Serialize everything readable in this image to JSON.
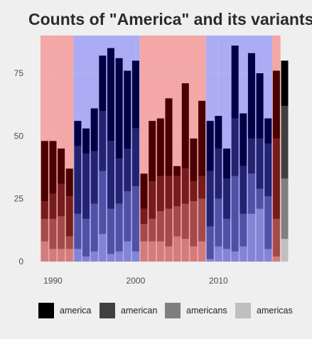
{
  "chart_data": {
    "type": "bar",
    "title": "Counts of \"America\" and its variants",
    "xlabel": "",
    "ylabel": "",
    "stacked": true,
    "ylim": [
      0,
      90
    ],
    "xlim": [
      1988.5,
      2018.3
    ],
    "y_ticks": [
      0,
      25,
      50,
      75
    ],
    "x_ticks": [
      1990,
      2000,
      2010
    ],
    "grid": true,
    "legend_position": "bottom",
    "background_bands": [
      {
        "from": 1988.5,
        "to": 1992.5,
        "color": "#f4a7a7"
      },
      {
        "from": 1992.5,
        "to": 2000.5,
        "color": "#acacf4"
      },
      {
        "from": 2000.5,
        "to": 2008.5,
        "color": "#f4a7a7"
      },
      {
        "from": 2008.5,
        "to": 2016.5,
        "color": "#acacf4"
      },
      {
        "from": 2016.5,
        "to": 2017.5,
        "color": "#f4a7a7"
      }
    ],
    "bar_colors": [
      {
        "from": 1988.5,
        "to": 1992.5,
        "colors": [
          "#4a0000",
          "#751c1c",
          "#a34b4b",
          "#d27d7d"
        ]
      },
      {
        "from": 1992.5,
        "to": 2000.5,
        "colors": [
          "#000045",
          "#23236f",
          "#5050a5",
          "#8484d5"
        ]
      },
      {
        "from": 2000.5,
        "to": 2008.5,
        "colors": [
          "#4a0000",
          "#751c1c",
          "#a34b4b",
          "#d27d7d"
        ]
      },
      {
        "from": 2008.5,
        "to": 2016.5,
        "colors": [
          "#000045",
          "#23236f",
          "#5050a5",
          "#8484d5"
        ]
      },
      {
        "from": 2016.5,
        "to": 2017.5,
        "colors": [
          "#4a0000",
          "#751c1c",
          "#a34b4b",
          "#d27d7d"
        ]
      },
      {
        "from": 2017.5,
        "to": 2018.5,
        "colors": [
          "#000000",
          "#404040",
          "#7f7f7f",
          "#bfbfbf"
        ]
      }
    ],
    "series_names": [
      "america",
      "american",
      "americans",
      "americas"
    ],
    "legend_colors": [
      "#000000",
      "#404040",
      "#7f7f7f",
      "#bfbfbf"
    ],
    "bars": [
      {
        "x": 1989,
        "values": [
          24,
          7,
          9,
          8
        ]
      },
      {
        "x": 1990,
        "values": [
          21,
          10,
          12,
          5
        ]
      },
      {
        "x": 1991,
        "values": [
          14,
          13,
          13,
          5
        ]
      },
      {
        "x": 1992,
        "values": [
          11,
          16,
          5,
          5
        ]
      },
      {
        "x": 1993,
        "values": [
          10,
          27,
          14,
          5
        ]
      },
      {
        "x": 1994,
        "values": [
          10,
          26,
          15,
          2
        ]
      },
      {
        "x": 1995,
        "values": [
          17,
          21,
          19,
          4
        ]
      },
      {
        "x": 1996,
        "values": [
          22,
          24,
          25,
          11
        ]
      },
      {
        "x": 1997,
        "values": [
          37,
          27,
          18,
          3
        ]
      },
      {
        "x": 1998,
        "values": [
          40,
          18,
          19,
          4
        ]
      },
      {
        "x": 1999,
        "values": [
          31,
          17,
          20,
          8
        ]
      },
      {
        "x": 2000,
        "values": [
          27,
          23,
          26,
          4
        ]
      },
      {
        "x": 2001,
        "values": [
          14,
          6,
          7,
          8
        ]
      },
      {
        "x": 2002,
        "values": [
          24,
          15,
          9,
          8
        ]
      },
      {
        "x": 2003,
        "values": [
          23,
          14,
          12,
          8
        ]
      },
      {
        "x": 2004,
        "values": [
          31,
          13,
          15,
          6
        ]
      },
      {
        "x": 2005,
        "values": [
          4,
          12,
          12,
          10
        ]
      },
      {
        "x": 2006,
        "values": [
          34,
          14,
          14,
          9
        ]
      },
      {
        "x": 2007,
        "values": [
          17,
          8,
          18,
          6
        ]
      },
      {
        "x": 2008,
        "values": [
          30,
          9,
          17,
          8
        ]
      },
      {
        "x": 2009,
        "values": [
          20,
          22,
          13,
          1
        ]
      },
      {
        "x": 2010,
        "values": [
          13,
          20,
          19,
          6
        ]
      },
      {
        "x": 2011,
        "values": [
          12,
          16,
          12,
          5
        ]
      },
      {
        "x": 2012,
        "values": [
          29,
          23,
          30,
          4
        ]
      },
      {
        "x": 2013,
        "values": [
          21,
          19,
          13,
          6
        ]
      },
      {
        "x": 2014,
        "values": [
          34,
          14,
          16,
          19
        ]
      },
      {
        "x": 2015,
        "values": [
          26,
          20,
          8,
          21
        ]
      },
      {
        "x": 2016,
        "values": [
          10,
          21,
          21,
          5
        ]
      },
      {
        "x": 2017,
        "values": [
          27,
          32,
          15,
          2
        ]
      },
      {
        "x": 2018,
        "values": [
          18,
          29,
          24,
          9
        ]
      }
    ]
  }
}
